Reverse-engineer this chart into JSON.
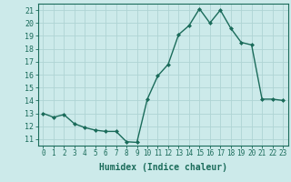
{
  "x": [
    0,
    1,
    2,
    3,
    4,
    5,
    6,
    7,
    8,
    9,
    10,
    11,
    12,
    13,
    14,
    15,
    16,
    17,
    18,
    19,
    20,
    21,
    22,
    23
  ],
  "y": [
    13,
    12.7,
    12.9,
    12.2,
    11.9,
    11.7,
    11.6,
    11.6,
    10.8,
    10.75,
    14.1,
    15.9,
    16.8,
    19.1,
    19.8,
    21.1,
    20.0,
    21.0,
    19.6,
    18.5,
    18.3,
    14.1,
    14.1,
    14.0
  ],
  "line_color": "#1a6b5a",
  "marker": "D",
  "marker_size": 2.0,
  "linewidth": 1.0,
  "xlabel": "Humidex (Indice chaleur)",
  "xlabel_fontsize": 7,
  "bg_color": "#cceaea",
  "grid_color": "#afd4d4",
  "xlim": [
    -0.5,
    23.5
  ],
  "ylim": [
    10.5,
    21.5
  ],
  "yticks": [
    11,
    12,
    13,
    14,
    15,
    16,
    17,
    18,
    19,
    20,
    21
  ],
  "xticks": [
    0,
    1,
    2,
    3,
    4,
    5,
    6,
    7,
    8,
    9,
    10,
    11,
    12,
    13,
    14,
    15,
    16,
    17,
    18,
    19,
    20,
    21,
    22,
    23
  ],
  "tick_fontsize": 5.5,
  "ytick_fontsize": 6.0
}
